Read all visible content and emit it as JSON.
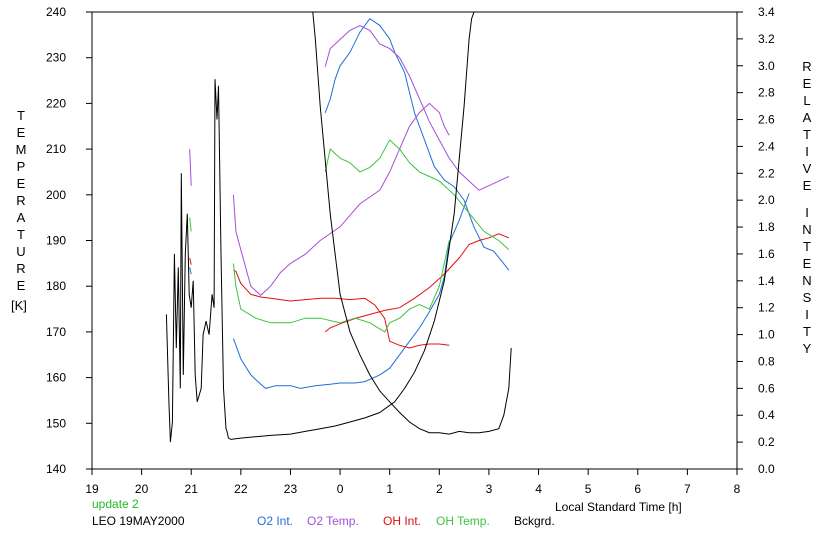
{
  "colors": {
    "o2_int": "#1f6fd6",
    "o2_temp": "#a64fd6",
    "oh_int": "#e01010",
    "oh_temp": "#3ec23e",
    "bckgrd": "#000000",
    "update": "#22bb22"
  },
  "left_axis_title": [
    "T",
    "E",
    "M",
    "P",
    "E",
    "R",
    "A",
    "T",
    "U",
    "R",
    "E"
  ],
  "left_axis_unit": "[K]",
  "right_axis_title_1": [
    "R",
    "E",
    "L",
    "A",
    "T",
    "I",
    "V",
    "E"
  ],
  "right_axis_title_2": [
    "I",
    "N",
    "T",
    "E",
    "N",
    "S",
    "I",
    "T",
    "Y"
  ],
  "update_text": "update 2",
  "station_text": "LEO 19MAY2000",
  "chart_data": {
    "type": "line",
    "xlabel": "Local Standard Time [h]",
    "x_ticks": [
      "19",
      "20",
      "21",
      "22",
      "23",
      "0",
      "1",
      "2",
      "3",
      "4",
      "5",
      "6",
      "7",
      "8"
    ],
    "xlim": [
      19,
      32
    ],
    "y_left_ticks": [
      "140",
      "150",
      "160",
      "170",
      "180",
      "190",
      "200",
      "210",
      "220",
      "230",
      "240"
    ],
    "ylim_left": [
      140,
      240
    ],
    "y_right_ticks": [
      "0.0",
      "0.2",
      "0.4",
      "0.6",
      "0.8",
      "1.0",
      "1.2",
      "1.4",
      "1.6",
      "1.8",
      "2.0",
      "2.2",
      "2.4",
      "2.6",
      "2.8",
      "3.0",
      "3.2",
      "3.4"
    ],
    "ylim_right": [
      0,
      3.4
    ],
    "grid": false,
    "legend_position": "bottom",
    "series": [
      {
        "name": "O2 Int.",
        "axis": "right",
        "colorKey": "o2_int",
        "segments": [
          {
            "x": [
              20.97,
              21.0
            ],
            "y": [
              1.5,
              1.45
            ]
          },
          {
            "x": [
              21.85,
              21.9,
              22.0,
              22.2,
              22.4,
              22.5,
              22.7,
              23.0,
              23.2,
              23.5,
              23.8,
              24.0,
              24.3,
              24.5,
              24.8,
              25.0,
              25.2,
              25.4,
              25.6,
              25.8,
              26.0,
              26.1,
              26.2,
              26.4,
              26.6
            ],
            "y": [
              0.97,
              0.92,
              0.82,
              0.7,
              0.63,
              0.6,
              0.62,
              0.62,
              0.6,
              0.62,
              0.63,
              0.64,
              0.64,
              0.65,
              0.7,
              0.75,
              0.85,
              0.95,
              1.05,
              1.17,
              1.3,
              1.43,
              1.68,
              1.85,
              2.05
            ]
          },
          {
            "x": [
              23.7,
              23.8,
              23.9,
              24.0,
              24.2,
              24.4,
              24.6,
              24.8,
              25.0,
              25.1,
              25.3,
              25.5,
              25.7,
              25.9,
              26.1,
              26.3,
              26.5,
              26.7,
              26.9,
              27.1,
              27.4
            ],
            "y": [
              2.65,
              2.75,
              2.9,
              3.0,
              3.1,
              3.25,
              3.35,
              3.3,
              3.2,
              3.1,
              2.95,
              2.65,
              2.45,
              2.25,
              2.15,
              2.1,
              2.0,
              1.8,
              1.65,
              1.62,
              1.48
            ]
          }
        ]
      },
      {
        "name": "O2 Temp.",
        "axis": "left",
        "colorKey": "o2_temp",
        "segments": [
          {
            "x": [
              20.97,
              21.0
            ],
            "y": [
              210,
              202
            ]
          },
          {
            "x": [
              21.85,
              21.9,
              22.0,
              22.2,
              22.4,
              22.6,
              22.8,
              23.0,
              23.3,
              23.6,
              24.0,
              24.4,
              24.8,
              25.0,
              25.2,
              25.4,
              25.6,
              25.8,
              26.0,
              26.1,
              26.2
            ],
            "y": [
              200,
              192,
              188,
              180,
              178,
              180,
              183,
              185,
              187,
              190,
              193,
              198,
              201,
              205,
              210,
              215,
              218,
              220,
              218,
              215,
              213
            ]
          },
          {
            "x": [
              23.7,
              23.8,
              24.0,
              24.2,
              24.4,
              24.6,
              24.8,
              25.0,
              25.2,
              25.4,
              25.6,
              25.8,
              26.0,
              26.2,
              26.4,
              26.6,
              26.8,
              27.0,
              27.2,
              27.4
            ],
            "y": [
              228,
              232,
              234,
              236,
              237,
              236,
              233,
              232,
              230,
              226,
              221,
              216,
              212,
              208,
              205,
              203,
              201,
              202,
              203,
              204
            ]
          }
        ]
      },
      {
        "name": "OH Int.",
        "axis": "right",
        "colorKey": "oh_int",
        "segments": [
          {
            "x": [
              20.97,
              21.0
            ],
            "y": [
              1.57,
              1.52
            ]
          },
          {
            "x": [
              21.85,
              21.9,
              22.0,
              22.2,
              22.4,
              22.6,
              22.8,
              23.0,
              23.3,
              23.6,
              23.9,
              24.2,
              24.5,
              24.7,
              24.9,
              25.0,
              25.2,
              25.4,
              25.6,
              25.8,
              26.0,
              26.2
            ],
            "y": [
              1.48,
              1.47,
              1.38,
              1.3,
              1.28,
              1.27,
              1.26,
              1.25,
              1.26,
              1.27,
              1.27,
              1.26,
              1.27,
              1.22,
              1.12,
              0.95,
              0.92,
              0.9,
              0.92,
              0.93,
              0.93,
              0.92
            ]
          },
          {
            "x": [
              23.7,
              23.8,
              24.0,
              24.3,
              24.6,
              24.9,
              25.2,
              25.5,
              25.8,
              26.1,
              26.4,
              26.6,
              26.8,
              27.0,
              27.2,
              27.4
            ],
            "y": [
              1.02,
              1.05,
              1.08,
              1.12,
              1.15,
              1.18,
              1.2,
              1.27,
              1.35,
              1.45,
              1.57,
              1.67,
              1.7,
              1.72,
              1.75,
              1.72
            ]
          }
        ]
      },
      {
        "name": "OH Temp.",
        "axis": "left",
        "colorKey": "oh_temp",
        "segments": [
          {
            "x": [
              20.97,
              21.0
            ],
            "y": [
              195,
              192
            ]
          },
          {
            "x": [
              21.85,
              21.9,
              22.0,
              22.3,
              22.6,
              23.0,
              23.3,
              23.6,
              24.0,
              24.3,
              24.6,
              24.9,
              25.0,
              25.2,
              25.4,
              25.6,
              25.8,
              26.0,
              26.1,
              26.2
            ],
            "y": [
              185,
              180,
              175,
              173,
              172,
              172,
              173,
              173,
              172,
              173,
              172,
              170,
              172,
              173,
              175,
              176,
              175,
              180,
              185,
              190
            ]
          },
          {
            "x": [
              23.7,
              23.8,
              24.0,
              24.2,
              24.4,
              24.6,
              24.8,
              25.0,
              25.2,
              25.4,
              25.6,
              25.8,
              26.0,
              26.3,
              26.6,
              26.9,
              27.2,
              27.4
            ],
            "y": [
              205,
              210,
              208,
              207,
              205,
              206,
              208,
              212,
              210,
              207,
              205,
              204,
              203,
              200,
              196,
              192,
              190,
              188
            ]
          }
        ]
      },
      {
        "name": "Bckgrd.",
        "axis": "right",
        "colorKey": "bckgrd",
        "segments": [
          {
            "x": [
              20.5,
              20.55,
              20.58,
              20.62,
              20.66,
              20.7,
              20.74,
              20.78,
              20.8,
              20.84,
              20.88,
              20.92,
              20.96,
              21.0,
              21.04,
              21.08,
              21.12,
              21.16,
              21.2,
              21.24,
              21.3,
              21.36,
              21.42,
              21.46,
              21.48,
              21.52,
              21.55,
              21.6,
              21.65,
              21.7,
              21.72,
              21.75,
              21.8,
              22.0,
              22.3,
              22.6,
              23.0,
              23.3,
              23.6,
              23.9,
              24.2,
              24.5,
              24.8,
              25.1,
              25.3,
              25.5,
              25.7,
              25.9,
              26.1,
              26.3,
              26.5,
              26.6,
              26.65,
              26.7
            ],
            "y": [
              1.15,
              0.5,
              0.2,
              0.35,
              1.6,
              0.9,
              1.5,
              0.6,
              2.2,
              0.7,
              1.6,
              1.9,
              1.3,
              1.2,
              1.4,
              0.7,
              0.5,
              0.55,
              0.6,
              1.0,
              1.1,
              1.0,
              1.3,
              1.2,
              2.9,
              2.6,
              2.85,
              1.6,
              0.6,
              0.3,
              0.28,
              0.23,
              0.22,
              0.23,
              0.24,
              0.25,
              0.26,
              0.28,
              0.3,
              0.32,
              0.35,
              0.38,
              0.42,
              0.5,
              0.6,
              0.72,
              0.88,
              1.1,
              1.4,
              1.9,
              2.7,
              3.2,
              3.35,
              3.4
            ]
          },
          {
            "x": [
              23.45,
              23.5,
              23.6,
              23.7,
              23.8,
              23.9,
              24.0,
              24.2,
              24.4,
              24.6,
              24.8,
              25.0,
              25.2,
              25.4,
              25.6,
              25.8,
              26.0,
              26.2,
              26.4,
              26.6,
              26.8,
              27.0,
              27.2,
              27.3,
              27.4,
              27.45
            ],
            "y": [
              3.4,
              3.2,
              2.7,
              2.3,
              1.9,
              1.6,
              1.3,
              1.02,
              0.85,
              0.7,
              0.58,
              0.5,
              0.42,
              0.35,
              0.3,
              0.27,
              0.27,
              0.26,
              0.28,
              0.27,
              0.27,
              0.28,
              0.3,
              0.4,
              0.6,
              0.9
            ]
          }
        ]
      }
    ]
  }
}
